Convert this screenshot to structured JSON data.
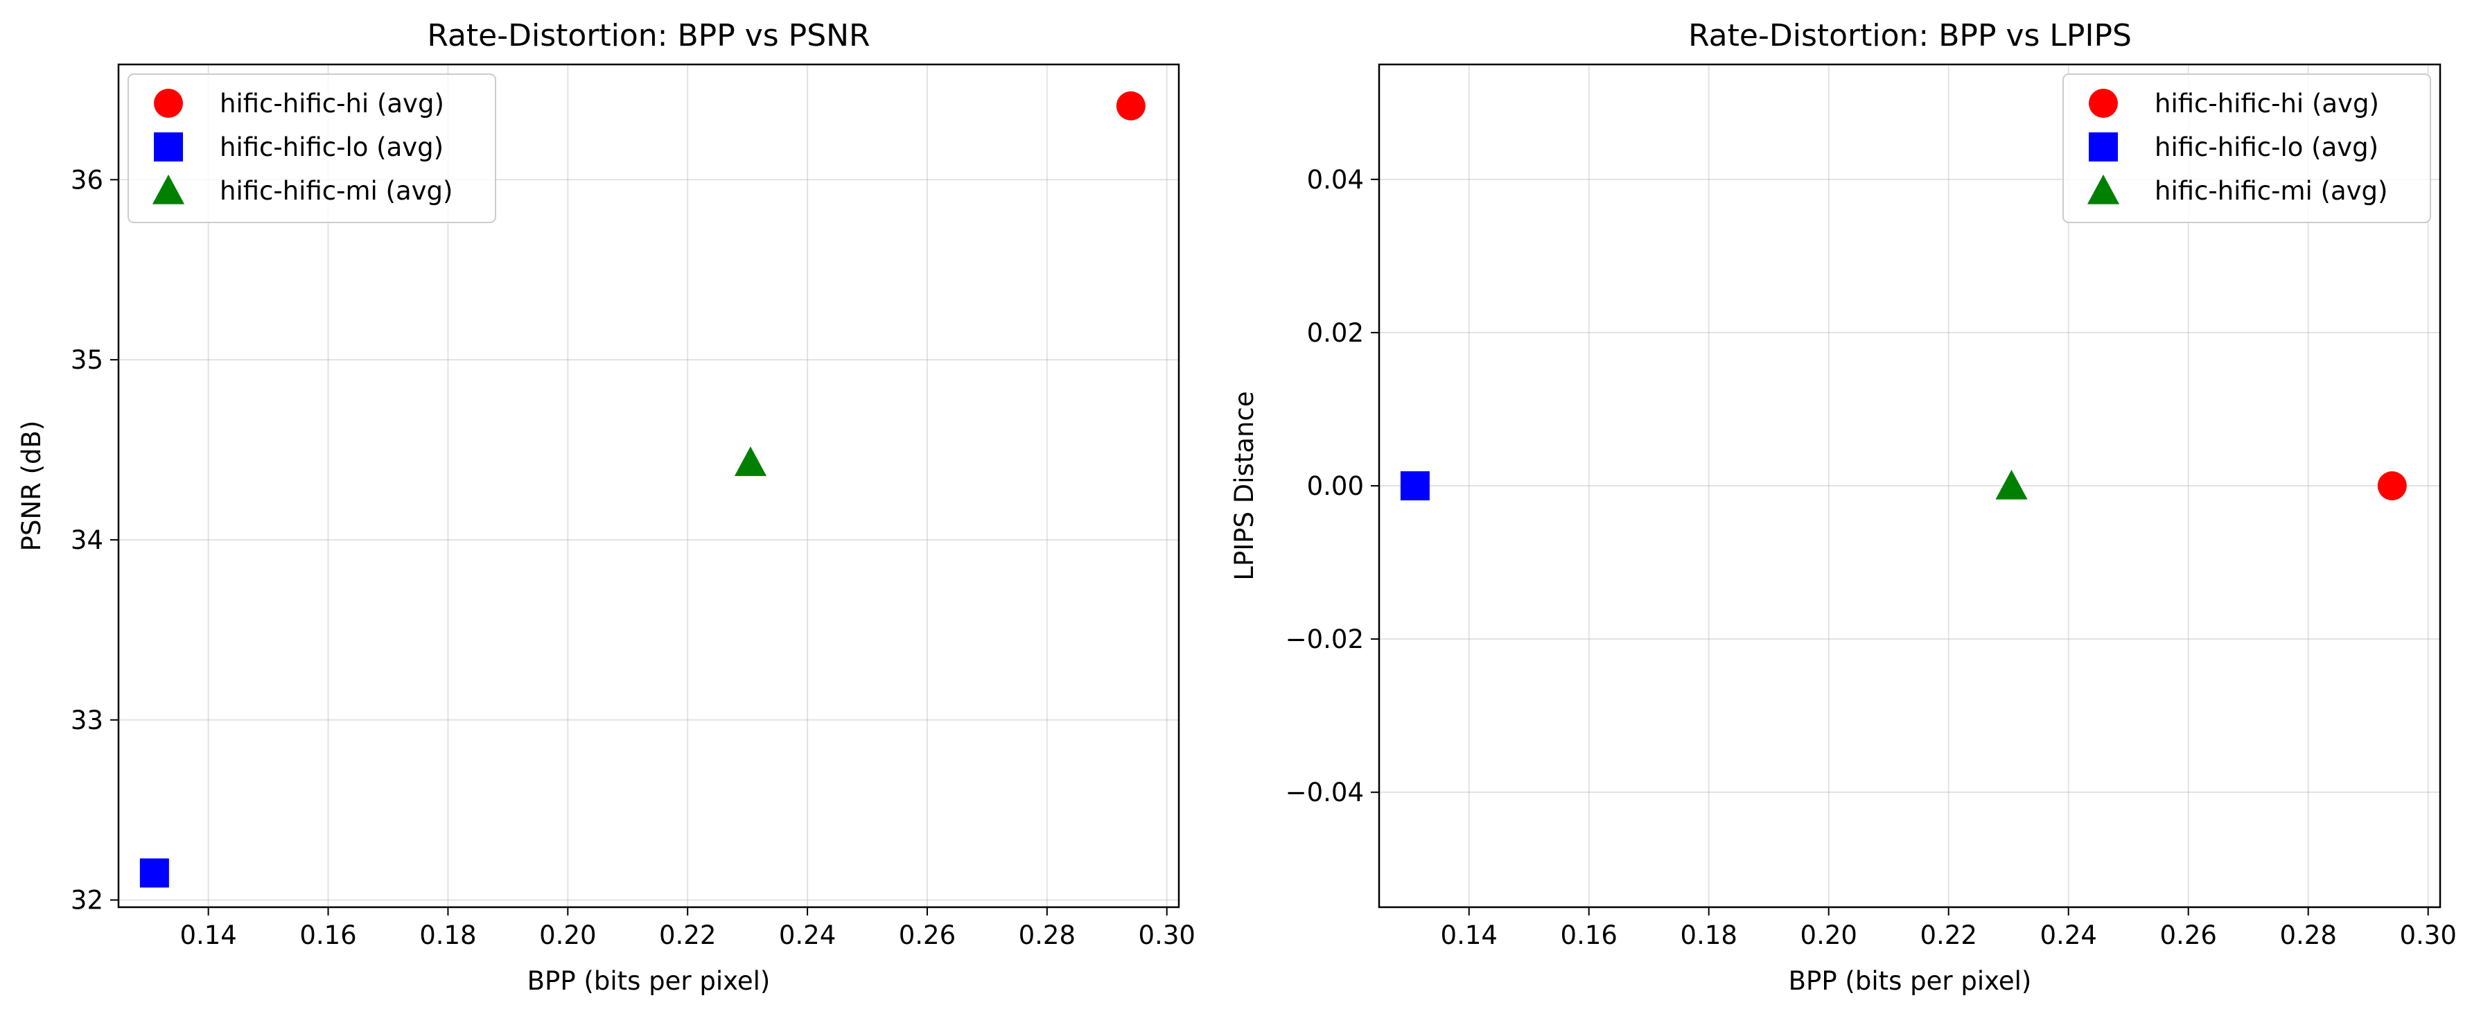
{
  "chart_data": [
    {
      "type": "scatter",
      "title": "Rate-Distortion: BPP vs PSNR",
      "xlabel": "BPP (bits per pixel)",
      "ylabel": "PSNR (dB)",
      "xlim": [
        0.125,
        0.302
      ],
      "ylim": [
        31.96,
        36.64
      ],
      "xticks": [
        0.14,
        0.16,
        0.18,
        0.2,
        0.22,
        0.24,
        0.26,
        0.28,
        0.3
      ],
      "xtick_labels": [
        "0.14",
        "0.16",
        "0.18",
        "0.20",
        "0.22",
        "0.24",
        "0.26",
        "0.28",
        "0.30"
      ],
      "yticks": [
        32,
        33,
        34,
        35,
        36
      ],
      "ytick_labels": [
        "32",
        "33",
        "34",
        "35",
        "36"
      ],
      "grid": true,
      "legend_position": "upper-left",
      "series": [
        {
          "name": "hific-hific-hi (avg)",
          "marker": "circle",
          "color": "#ff0000",
          "x": 0.294,
          "y": 36.41
        },
        {
          "name": "hific-hific-lo (avg)",
          "marker": "square",
          "color": "#0000ff",
          "x": 0.131,
          "y": 32.15
        },
        {
          "name": "hific-hific-mi (avg)",
          "marker": "triangle",
          "color": "#008000",
          "x": 0.2305,
          "y": 34.43
        }
      ]
    },
    {
      "type": "scatter",
      "title": "Rate-Distortion: BPP vs LPIPS",
      "xlabel": "BPP (bits per pixel)",
      "ylabel": "LPIPS Distance",
      "xlim": [
        0.125,
        0.302
      ],
      "ylim": [
        -0.055,
        0.055
      ],
      "xticks": [
        0.14,
        0.16,
        0.18,
        0.2,
        0.22,
        0.24,
        0.26,
        0.28,
        0.3
      ],
      "xtick_labels": [
        "0.14",
        "0.16",
        "0.18",
        "0.20",
        "0.22",
        "0.24",
        "0.26",
        "0.28",
        "0.30"
      ],
      "yticks": [
        -0.04,
        -0.02,
        0.0,
        0.02,
        0.04
      ],
      "ytick_labels": [
        "−0.04",
        "−0.02",
        "0.00",
        "0.02",
        "0.04"
      ],
      "grid": true,
      "legend_position": "upper-right",
      "series": [
        {
          "name": "hific-hific-hi (avg)",
          "marker": "circle",
          "color": "#ff0000",
          "x": 0.294,
          "y": 0.0
        },
        {
          "name": "hific-hific-lo (avg)",
          "marker": "square",
          "color": "#0000ff",
          "x": 0.131,
          "y": 0.0
        },
        {
          "name": "hific-hific-mi (avg)",
          "marker": "triangle",
          "color": "#008000",
          "x": 0.2305,
          "y": 0.0
        }
      ]
    }
  ]
}
